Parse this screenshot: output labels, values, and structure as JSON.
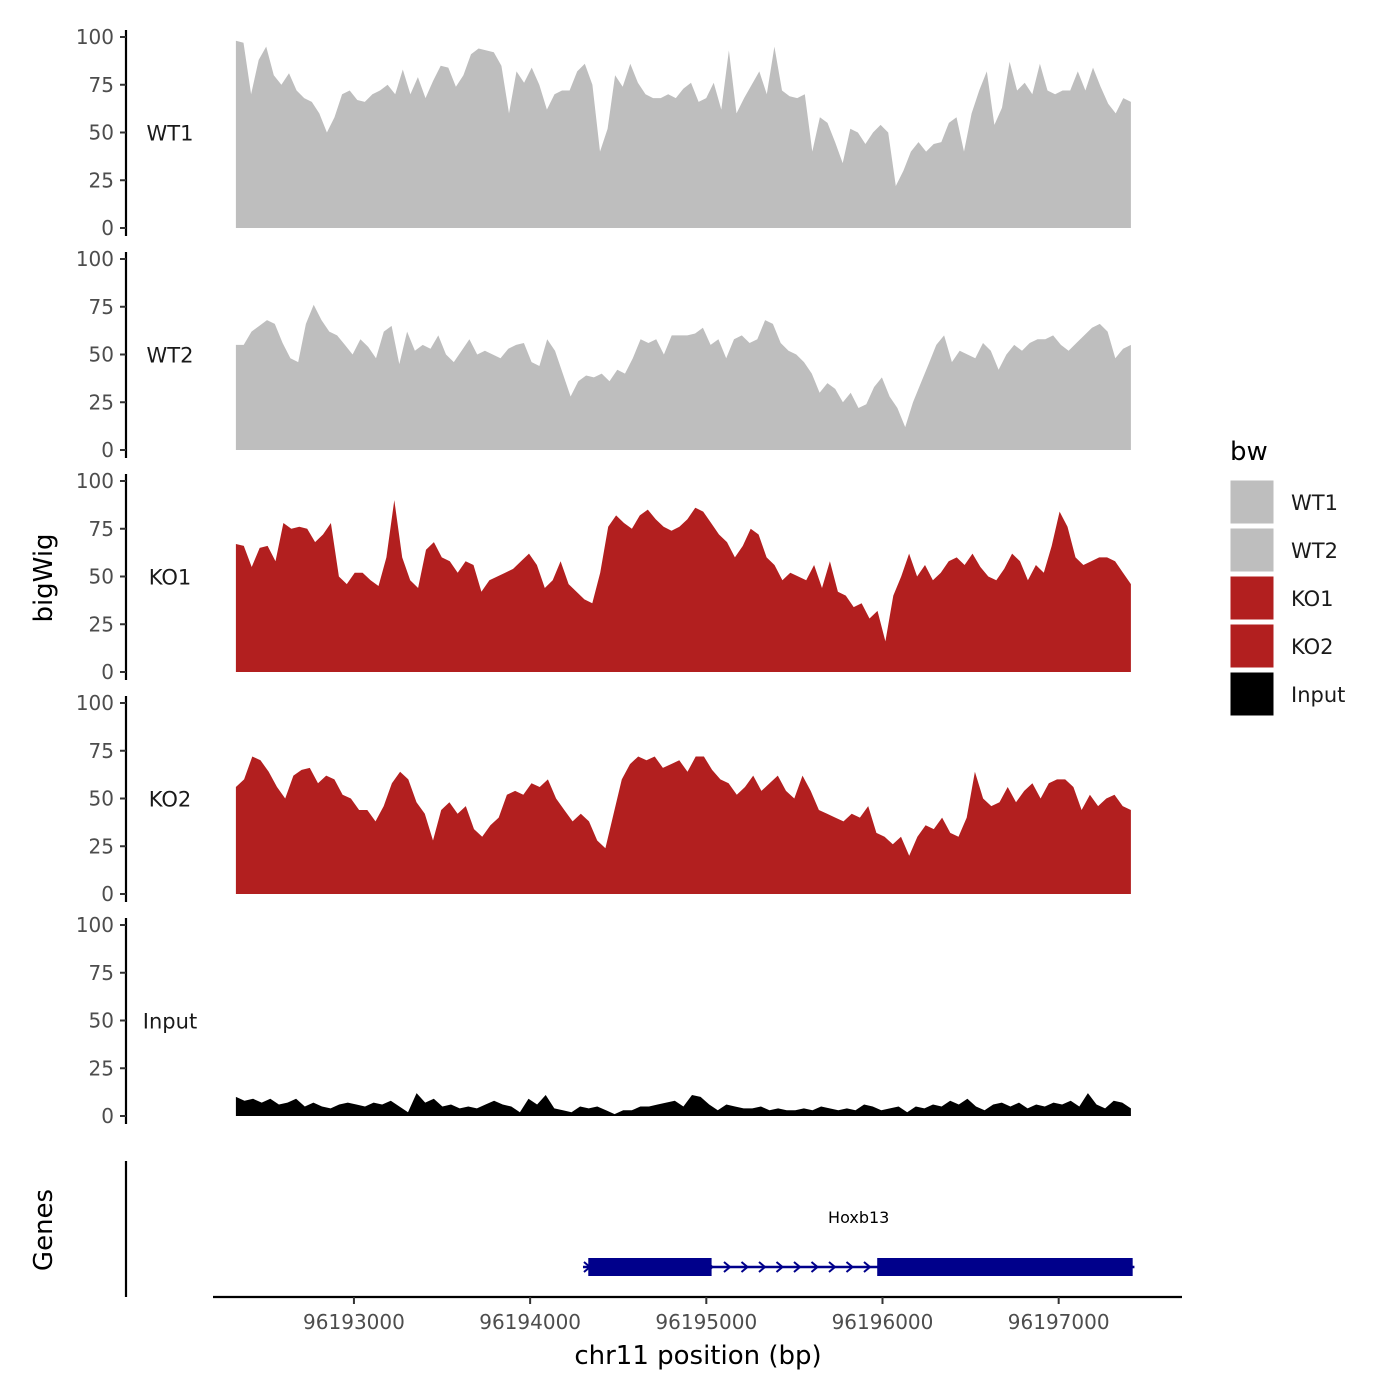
{
  "chart_data": {
    "type": "area",
    "ylabel": "bigWig",
    "xlabel": "chr11 position (bp)",
    "genes_label": "Genes",
    "ylim": [
      0,
      100
    ],
    "yticks": [
      "0",
      "25",
      "50",
      "75",
      "100"
    ],
    "xlim": [
      96192200,
      96197700
    ],
    "xticks": [
      96193000,
      96194000,
      96195000,
      96196000,
      96197000
    ],
    "xtick_labels": [
      "96193000",
      "96194000",
      "96195000",
      "96196000",
      "96197000"
    ],
    "x_start": 96192330,
    "x_end": 96197410,
    "legend": {
      "title": "bw",
      "placement": "right",
      "entries": [
        {
          "label": "WT1",
          "color": "#bebebe"
        },
        {
          "label": "WT2",
          "color": "#bebebe"
        },
        {
          "label": "KO1",
          "color": "#b21f1f"
        },
        {
          "label": "KO2",
          "color": "#b21f1f"
        },
        {
          "label": "Input",
          "color": "#000000"
        }
      ]
    },
    "series": [
      {
        "name": "WT1",
        "color": "#bebebe",
        "values": [
          98,
          97,
          70,
          88,
          95,
          80,
          75,
          81,
          72,
          68,
          66,
          60,
          50,
          58,
          70,
          72,
          67,
          66,
          70,
          72,
          75,
          70,
          83,
          70,
          79,
          68,
          77,
          85,
          84,
          74,
          80,
          91,
          94,
          93,
          92,
          85,
          60,
          82,
          76,
          84,
          75,
          62,
          70,
          72,
          72,
          82,
          86,
          75,
          40,
          52,
          80,
          74,
          86,
          76,
          70,
          68,
          68,
          70,
          68,
          73,
          76,
          66,
          68,
          76,
          62,
          93,
          60,
          68,
          75,
          82,
          70,
          95,
          72,
          69,
          68,
          70,
          40,
          58,
          55,
          45,
          34,
          52,
          50,
          44,
          50,
          54,
          50,
          22,
          30,
          40,
          45,
          40,
          44,
          45,
          55,
          58,
          40,
          60,
          72,
          82,
          54,
          63,
          87,
          72,
          76,
          70,
          86,
          72,
          70,
          72,
          72,
          82,
          72,
          84,
          74,
          65,
          60,
          68,
          66
        ]
      },
      {
        "name": "WT2",
        "color": "#bebebe",
        "values": [
          55,
          55,
          62,
          65,
          68,
          66,
          56,
          48,
          46,
          66,
          76,
          68,
          62,
          60,
          55,
          50,
          58,
          54,
          48,
          62,
          65,
          45,
          62,
          52,
          55,
          53,
          60,
          50,
          46,
          52,
          58,
          50,
          52,
          50,
          48,
          53,
          55,
          56,
          46,
          44,
          58,
          52,
          40,
          28,
          36,
          39,
          38,
          40,
          36,
          42,
          40,
          48,
          58,
          56,
          58,
          50,
          60,
          60,
          60,
          61,
          64,
          55,
          58,
          48,
          58,
          60,
          56,
          58,
          68,
          66,
          56,
          52,
          50,
          46,
          40,
          30,
          35,
          32,
          25,
          30,
          22,
          24,
          33,
          38,
          28,
          22,
          12,
          25,
          35,
          45,
          55,
          60,
          46,
          52,
          50,
          48,
          56,
          52,
          42,
          50,
          55,
          52,
          56,
          58,
          58,
          60,
          55,
          52,
          56,
          60,
          64,
          66,
          62,
          48,
          53,
          55
        ]
      },
      {
        "name": "KO1",
        "color": "#b21f1f",
        "values": [
          67,
          66,
          55,
          65,
          66,
          58,
          78,
          75,
          76,
          75,
          68,
          72,
          78,
          50,
          46,
          52,
          52,
          48,
          45,
          60,
          90,
          60,
          48,
          44,
          64,
          68,
          60,
          58,
          52,
          58,
          56,
          42,
          48,
          50,
          52,
          54,
          58,
          62,
          56,
          44,
          48,
          58,
          46,
          42,
          38,
          36,
          52,
          76,
          82,
          78,
          75,
          82,
          85,
          80,
          76,
          74,
          76,
          80,
          86,
          84,
          78,
          72,
          68,
          60,
          66,
          75,
          72,
          60,
          56,
          48,
          52,
          50,
          48,
          56,
          44,
          58,
          42,
          40,
          34,
          36,
          28,
          32,
          16,
          40,
          50,
          62,
          50,
          56,
          48,
          52,
          58,
          60,
          56,
          62,
          55,
          50,
          48,
          54,
          62,
          58,
          48,
          56,
          52,
          66,
          84,
          76,
          60,
          56,
          58,
          60,
          60,
          58,
          52,
          46
        ]
      },
      {
        "name": "KO2",
        "color": "#b21f1f",
        "values": [
          56,
          60,
          72,
          70,
          64,
          56,
          50,
          62,
          65,
          66,
          58,
          62,
          60,
          52,
          50,
          44,
          44,
          38,
          46,
          58,
          64,
          60,
          48,
          42,
          28,
          44,
          48,
          42,
          46,
          34,
          30,
          36,
          40,
          52,
          54,
          52,
          58,
          56,
          60,
          50,
          44,
          38,
          42,
          38,
          28,
          24,
          42,
          60,
          68,
          72,
          70,
          72,
          66,
          68,
          70,
          64,
          72,
          72,
          65,
          60,
          58,
          52,
          56,
          62,
          54,
          58,
          62,
          54,
          50,
          62,
          54,
          44,
          42,
          40,
          38,
          42,
          40,
          46,
          32,
          30,
          26,
          30,
          20,
          30,
          36,
          34,
          40,
          32,
          30,
          40,
          64,
          50,
          46,
          48,
          56,
          48,
          54,
          58,
          50,
          58,
          60,
          60,
          56,
          44,
          52,
          46,
          50,
          52,
          46,
          44
        ]
      },
      {
        "name": "Input",
        "color": "#000000",
        "values": [
          10,
          8,
          9,
          7,
          9,
          6,
          7,
          9,
          5,
          7,
          5,
          4,
          6,
          7,
          6,
          5,
          7,
          6,
          8,
          5,
          2,
          12,
          7,
          9,
          5,
          6,
          4,
          5,
          4,
          6,
          8,
          6,
          5,
          2,
          9,
          6,
          11,
          4,
          3,
          2,
          5,
          4,
          5,
          3,
          1,
          3,
          3,
          5,
          5,
          6,
          7,
          8,
          5,
          11,
          10,
          6,
          3,
          6,
          5,
          4,
          4,
          5,
          3,
          4,
          3,
          3,
          4,
          3,
          5,
          4,
          3,
          4,
          3,
          6,
          5,
          3,
          4,
          5,
          2,
          5,
          4,
          6,
          5,
          8,
          6,
          9,
          5,
          3,
          6,
          7,
          5,
          7,
          4,
          6,
          5,
          7,
          6,
          8,
          5,
          12,
          6,
          4,
          8,
          7,
          4
        ]
      }
    ],
    "genes": [
      {
        "name": "Hoxb13",
        "color": "#00008b",
        "start": 96194300,
        "end": 96197430,
        "exons": [
          [
            96194330,
            96195030
          ],
          [
            96195970,
            96197420
          ]
        ]
      }
    ]
  }
}
